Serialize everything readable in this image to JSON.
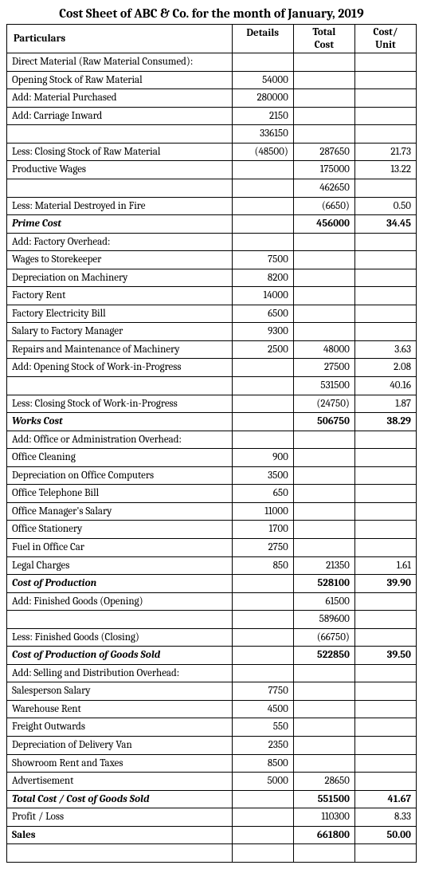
{
  "title": "Cost Sheet of ABC & Co. for the month of January, 2019",
  "columns": {
    "particulars": "Particulars",
    "details": "Details",
    "total_cost_l1": "Total",
    "total_cost_l2": "Cost",
    "cost_unit_l1": "Cost/",
    "cost_unit_l2": "Unit"
  },
  "rows": [
    {
      "p": "Direct Material (Raw Material Consumed):",
      "d": "",
      "t": "",
      "u": "",
      "cls": ""
    },
    {
      "p": "Opening Stock of Raw Material",
      "d": "54000",
      "t": "",
      "u": "",
      "cls": ""
    },
    {
      "p": "Add: Material Purchased",
      "d": "280000",
      "t": "",
      "u": "",
      "cls": ""
    },
    {
      "p": "Add: Carriage Inward",
      "d": "2150",
      "t": "",
      "u": "",
      "cls": ""
    },
    {
      "p": "",
      "d": "336150",
      "t": "",
      "u": "",
      "cls": ""
    },
    {
      "p": "Less: Closing Stock of Raw Material",
      "d": "(48500)",
      "t": "287650",
      "u": "21.73",
      "cls": ""
    },
    {
      "p": "Productive Wages",
      "d": "",
      "t": "175000",
      "u": "13.22",
      "cls": ""
    },
    {
      "p": "",
      "d": "",
      "t": "462650",
      "u": "",
      "cls": ""
    },
    {
      "p": "Less: Material Destroyed in Fire",
      "d": "",
      "t": "(6650)",
      "u": "0.50",
      "cls": ""
    },
    {
      "p": "Prime Cost",
      "d": "",
      "t": "456000",
      "u": "34.45",
      "cls": "bolditalic"
    },
    {
      "p": "Add: Factory Overhead:",
      "d": "",
      "t": "",
      "u": "",
      "cls": ""
    },
    {
      "p": "Wages to Storekeeper",
      "d": "7500",
      "t": "",
      "u": "",
      "cls": ""
    },
    {
      "p": "Depreciation on Machinery",
      "d": "8200",
      "t": "",
      "u": "",
      "cls": ""
    },
    {
      "p": "Factory Rent",
      "d": "14000",
      "t": "",
      "u": "",
      "cls": ""
    },
    {
      "p": "Factory Electricity Bill",
      "d": "6500",
      "t": "",
      "u": "",
      "cls": ""
    },
    {
      "p": "Salary to Factory Manager",
      "d": "9300",
      "t": "",
      "u": "",
      "cls": ""
    },
    {
      "p": "Repairs and Maintenance of Machinery",
      "d": "2500",
      "t": "48000",
      "u": "3.63",
      "cls": ""
    },
    {
      "p": "Add: Opening Stock of Work-in-Progress",
      "d": "",
      "t": "27500",
      "u": "2.08",
      "cls": ""
    },
    {
      "p": "",
      "d": "",
      "t": "531500",
      "u": "40.16",
      "cls": ""
    },
    {
      "p": "Less: Closing Stock of Work-in-Progress",
      "d": "",
      "t": "(24750)",
      "u": "1.87",
      "cls": ""
    },
    {
      "p": "Works Cost",
      "d": "",
      "t": "506750",
      "u": "38.29",
      "cls": "bolditalic"
    },
    {
      "p": "Add: Office or Administration Overhead:",
      "d": "",
      "t": "",
      "u": "",
      "cls": ""
    },
    {
      "p": "Office Cleaning",
      "d": "900",
      "t": "",
      "u": "",
      "cls": ""
    },
    {
      "p": "Depreciation on Office Computers",
      "d": "3500",
      "t": "",
      "u": "",
      "cls": ""
    },
    {
      "p": "Office Telephone Bill",
      "d": "650",
      "t": "",
      "u": "",
      "cls": ""
    },
    {
      "p": "Office Manager's Salary",
      "d": "11000",
      "t": "",
      "u": "",
      "cls": ""
    },
    {
      "p": "Office Stationery",
      "d": "1700",
      "t": "",
      "u": "",
      "cls": ""
    },
    {
      "p": "Fuel in Office Car",
      "d": "2750",
      "t": "",
      "u": "",
      "cls": ""
    },
    {
      "p": "Legal Charges",
      "d": "850",
      "t": "21350",
      "u": "1.61",
      "cls": ""
    },
    {
      "p": "Cost of Production",
      "d": "",
      "t": "528100",
      "u": "39.90",
      "cls": "bolditalic"
    },
    {
      "p": "Add: Finished Goods (Opening)",
      "d": "",
      "t": "61500",
      "u": "",
      "cls": ""
    },
    {
      "p": "",
      "d": "",
      "t": "589600",
      "u": "",
      "cls": ""
    },
    {
      "p": "Less: Finished Goods (Closing)",
      "d": "",
      "t": "(66750)",
      "u": "",
      "cls": ""
    },
    {
      "p": "Cost of Production of Goods Sold",
      "d": "",
      "t": "522850",
      "u": "39.50",
      "cls": "bolditalic"
    },
    {
      "p": "Add: Selling and Distribution Overhead:",
      "d": "",
      "t": "",
      "u": "",
      "cls": ""
    },
    {
      "p": "Salesperson Salary",
      "d": "7750",
      "t": "",
      "u": "",
      "cls": ""
    },
    {
      "p": "Warehouse Rent",
      "d": "4500",
      "t": "",
      "u": "",
      "cls": ""
    },
    {
      "p": "Freight Outwards",
      "d": "550",
      "t": "",
      "u": "",
      "cls": ""
    },
    {
      "p": "Depreciation of Delivery Van",
      "d": "2350",
      "t": "",
      "u": "",
      "cls": ""
    },
    {
      "p": "Showroom Rent and Taxes",
      "d": "8500",
      "t": "",
      "u": "",
      "cls": ""
    },
    {
      "p": "Advertisement",
      "d": "5000",
      "t": "28650",
      "u": "",
      "cls": ""
    },
    {
      "p": "Total Cost / Cost of Goods Sold",
      "d": "",
      "t": "551500",
      "u": "41.67",
      "cls": "bolditalic"
    },
    {
      "p": "Profit / Loss",
      "d": "",
      "t": "110300",
      "u": "8.33",
      "cls": ""
    },
    {
      "p": "Sales",
      "d": "",
      "t": "661800",
      "u": "50.00",
      "cls": "bold"
    },
    {
      "p": "",
      "d": "",
      "t": "",
      "u": "",
      "cls": ""
    }
  ]
}
